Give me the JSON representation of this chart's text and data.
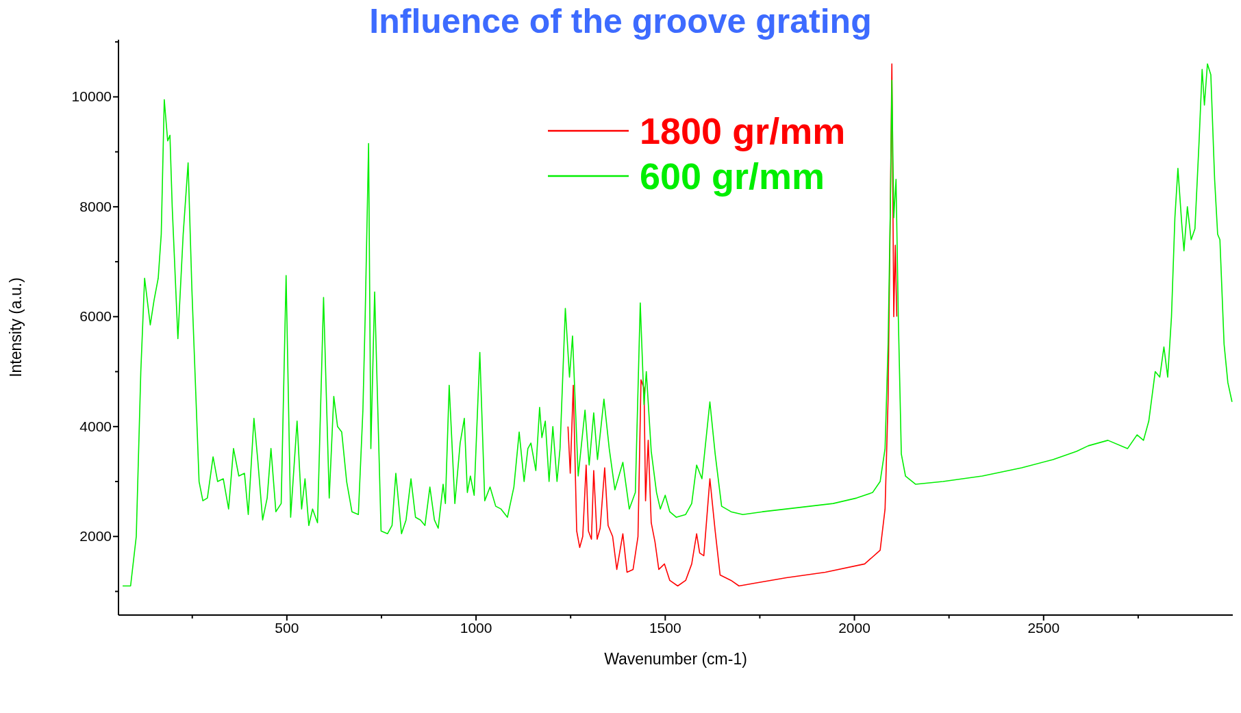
{
  "chart_data": {
    "type": "line",
    "title": "Influence of the groove grating",
    "xlabel": "Wavenumber (cm-1)",
    "ylabel": "Intensity (a.u.)",
    "xlim": [
      55,
      3000
    ],
    "ylim": [
      570,
      11040
    ],
    "xticks": [
      {
        "value": 250,
        "label": null
      },
      500,
      {
        "value": 750,
        "label": null
      },
      1000,
      {
        "value": 1250,
        "label": null
      },
      1500,
      {
        "value": 1750,
        "label": null
      },
      2000,
      {
        "value": 2250,
        "label": null
      },
      2500,
      {
        "value": 2750,
        "label": null
      }
    ],
    "yticks": [
      {
        "value": 1000,
        "label": null
      },
      2000,
      {
        "value": 3000,
        "label": null
      },
      4000,
      {
        "value": 5000,
        "label": null
      },
      6000,
      {
        "value": 7000,
        "label": null
      },
      8000,
      {
        "value": 9000,
        "label": null
      },
      10000,
      {
        "value": 11000,
        "label": null
      }
    ],
    "grid": false,
    "legend": "top",
    "marker": "none",
    "line_style": "solid",
    "series": [
      {
        "name": "1800 gr/mm",
        "color": "#ff0000",
        "x": [
          1243,
          1249,
          1257,
          1266,
          1274,
          1282,
          1291,
          1297,
          1305,
          1311,
          1320,
          1328,
          1340,
          1349,
          1361,
          1372,
          1388,
          1399,
          1415,
          1428,
          1436,
          1444,
          1448,
          1455,
          1463,
          1473,
          1483,
          1498,
          1512,
          1533,
          1554,
          1570,
          1583,
          1591,
          1602,
          1618,
          1632,
          1645,
          1674,
          1695,
          1736,
          1820,
          1923,
          2027,
          2068,
          2081,
          2089,
          2095,
          2099,
          2104,
          2108,
          2112
        ],
        "values": [
          4000,
          3150,
          4750,
          2100,
          1800,
          2000,
          3300,
          2100,
          1950,
          3200,
          1950,
          2150,
          3250,
          2200,
          2000,
          1400,
          2050,
          1350,
          1400,
          2000,
          4850,
          4700,
          2650,
          3750,
          2250,
          1900,
          1400,
          1500,
          1200,
          1100,
          1200,
          1500,
          2050,
          1700,
          1650,
          3050,
          2100,
          1300,
          1200,
          1100,
          1150,
          1250,
          1350,
          1500,
          1750,
          2500,
          4500,
          8000,
          10600,
          6000,
          7300,
          6000
        ]
      },
      {
        "name": "600 gr/mm",
        "color": "#00ee00",
        "x": [
          66,
          87,
          102,
          114,
          124,
          139,
          149,
          160,
          168,
          176,
          185,
          191,
          197,
          212,
          226,
          239,
          249,
          268,
          278,
          290,
          305,
          317,
          332,
          346,
          359,
          373,
          388,
          398,
          413,
          423,
          436,
          448,
          458,
          471,
          485,
          498,
          510,
          527,
          539,
          548,
          558,
          568,
          581,
          597,
          612,
          624,
          634,
          645,
          658,
          672,
          689,
          701,
          707,
          716,
          722,
          732,
          749,
          766,
          778,
          788,
          803,
          815,
          828,
          840,
          853,
          865,
          878,
          890,
          900,
          913,
          919,
          929,
          944,
          958,
          969,
          977,
          985,
          995,
          1010,
          1023,
          1037,
          1052,
          1066,
          1083,
          1100,
          1114,
          1127,
          1137,
          1145,
          1158,
          1168,
          1174,
          1183,
          1193,
          1203,
          1214,
          1222,
          1236,
          1247,
          1255,
          1270,
          1288,
          1299,
          1311,
          1321,
          1338,
          1352,
          1367,
          1388,
          1405,
          1421,
          1434,
          1444,
          1450,
          1463,
          1477,
          1487,
          1500,
          1512,
          1529,
          1554,
          1570,
          1583,
          1597,
          1618,
          1632,
          1649,
          1674,
          1705,
          1757,
          1820,
          1882,
          1944,
          2006,
          2048,
          2068,
          2081,
          2089,
          2095,
          2099,
          2104,
          2110,
          2116,
          2124,
          2135,
          2162,
          2234,
          2338,
          2442,
          2525,
          2587,
          2618,
          2670,
          2722,
          2747,
          2764,
          2778,
          2795,
          2807,
          2818,
          2828,
          2838,
          2847,
          2855,
          2865,
          2871,
          2880,
          2890,
          2900,
          2911,
          2919,
          2925,
          2933,
          2942,
          2952,
          2960,
          2966,
          2977,
          2987,
          2998
        ],
        "values": [
          1100,
          1100,
          2000,
          5000,
          6700,
          5850,
          6300,
          6700,
          7500,
          9950,
          9200,
          9300,
          8000,
          5600,
          7500,
          8800,
          6500,
          3000,
          2650,
          2700,
          3450,
          3000,
          3050,
          2500,
          3600,
          3100,
          3150,
          2400,
          4150,
          3400,
          2300,
          2700,
          3600,
          2450,
          2600,
          6750,
          2350,
          4100,
          2500,
          3050,
          2200,
          2500,
          2250,
          6350,
          2700,
          4550,
          4000,
          3900,
          3000,
          2450,
          2400,
          4300,
          6000,
          9150,
          3600,
          6450,
          2100,
          2050,
          2200,
          3150,
          2050,
          2300,
          3050,
          2350,
          2300,
          2200,
          2900,
          2300,
          2150,
          2950,
          2600,
          4750,
          2600,
          3700,
          4150,
          2800,
          3100,
          2750,
          5350,
          2650,
          2900,
          2550,
          2500,
          2350,
          2900,
          3900,
          3000,
          3600,
          3700,
          3200,
          4350,
          3800,
          4100,
          3000,
          4000,
          3000,
          3600,
          6150,
          4900,
          5650,
          3100,
          4300,
          3300,
          4250,
          3400,
          4500,
          3600,
          2850,
          3350,
          2500,
          2800,
          6250,
          4400,
          5000,
          3550,
          2800,
          2500,
          2750,
          2450,
          2350,
          2400,
          2600,
          3300,
          3050,
          4450,
          3500,
          2550,
          2450,
          2400,
          2450,
          2500,
          2550,
          2600,
          2700,
          2800,
          3000,
          3600,
          5500,
          8000,
          10300,
          7800,
          8500,
          6000,
          3500,
          3100,
          2950,
          3000,
          3100,
          3250,
          3400,
          3550,
          3650,
          3750,
          3600,
          3850,
          3750,
          4100,
          5000,
          4900,
          5450,
          4900,
          6000,
          7800,
          8700,
          7700,
          7200,
          8000,
          7400,
          7600,
          9200,
          10500,
          9850,
          10600,
          10400,
          8500,
          7500,
          7400,
          5500,
          4800,
          4450
        ]
      }
    ]
  }
}
